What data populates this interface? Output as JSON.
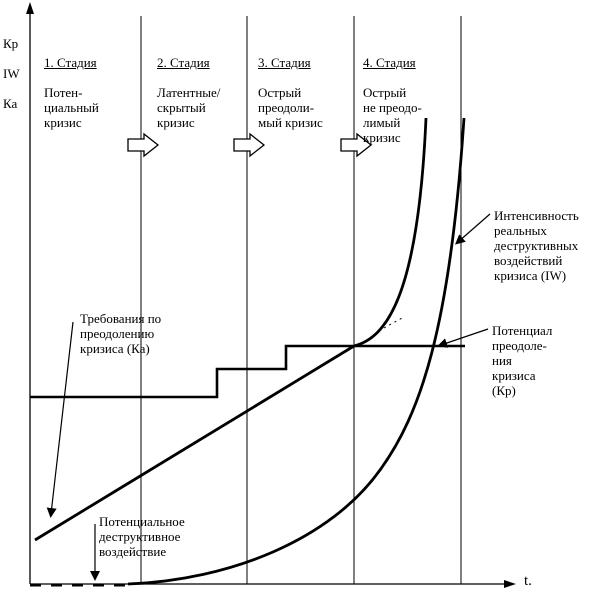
{
  "axes": {
    "y_label_lines": [
      "Кр",
      "IW",
      "Ка"
    ],
    "x_label": "t."
  },
  "stages": [
    {
      "title": "1. Стадия",
      "desc": "Потен-\nциальный\nкризис"
    },
    {
      "title": "2. Стадия",
      "desc": "Латентные/\nскрытый\nкризис"
    },
    {
      "title": "3. Стадия",
      "desc": "Острый\nпреодоли-\nмый кризис"
    },
    {
      "title": "4. Стадия",
      "desc": "Острый\nне преодо-\nлимый\nкризис"
    }
  ],
  "labels": {
    "ka": "Требования по\nпреодолению\nкризиса (Ка)",
    "iw": "Интенсивность\nреальных\nдеструктивных\nвоздействий\nкризиса (IW)",
    "kp": "Потенциал\nпреодоле-\nния\nкризиса\n(Кр)",
    "potential": "Потенциальное\nдеструктивное\nвоздействие"
  }
}
